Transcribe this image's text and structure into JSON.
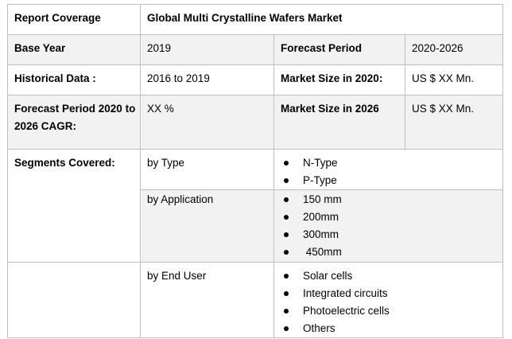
{
  "header": {
    "label": "Report Coverage",
    "title": "Global Multi Crystalline Wafers Market"
  },
  "rows": {
    "base_year": {
      "label": "Base Year",
      "value": "2019",
      "label2": "Forecast Period",
      "value2": "2020-2026"
    },
    "historical": {
      "label": "Historical Data :",
      "value": "2016 to 2019",
      "label2": "Market Size in 2020:",
      "value2": "US $ XX Mn."
    },
    "cagr": {
      "label": "Forecast Period 2020 to 2026 CAGR:",
      "value": "XX %",
      "label2": "Market Size in 2026",
      "value2": "US $ XX Mn."
    }
  },
  "segments": {
    "label": "Segments Covered:",
    "type": {
      "label": "by Type",
      "items": [
        "N-Type",
        "P-Type"
      ]
    },
    "application": {
      "label": "by Application",
      "items": [
        "150 mm",
        "200mm",
        "300mm",
        " 450mm"
      ]
    },
    "end_user": {
      "label": "by End User",
      "items": [
        "Solar cells",
        "Integrated circuits",
        "Photoelectric cells",
        "Others"
      ]
    }
  }
}
